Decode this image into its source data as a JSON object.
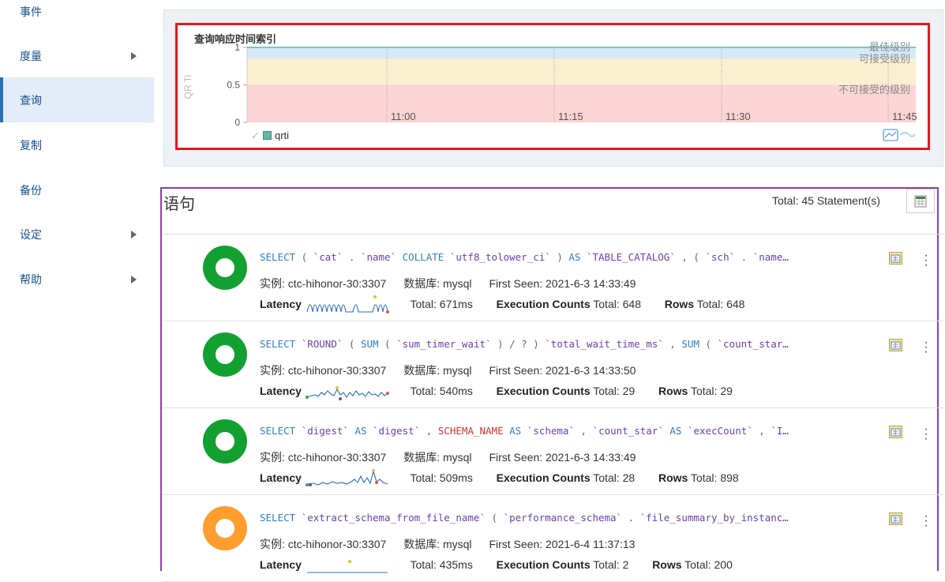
{
  "sidebar": {
    "items": [
      {
        "label": "事件",
        "has_chevron": false,
        "active": false
      },
      {
        "label": "度量",
        "has_chevron": true,
        "active": false
      },
      {
        "label": "查询",
        "has_chevron": false,
        "active": true
      },
      {
        "label": "复制",
        "has_chevron": false,
        "active": false
      },
      {
        "label": "备份",
        "has_chevron": false,
        "active": false
      },
      {
        "label": "设定",
        "has_chevron": true,
        "active": false
      },
      {
        "label": "帮助",
        "has_chevron": true,
        "active": false
      }
    ]
  },
  "chart": {
    "title": "查询响应时间索引",
    "legend_label": "qrti",
    "legend_check": "✓",
    "colors": {
      "good": "#d6e9f6",
      "acceptable": "#fbefd2",
      "unacceptable": "#fbd4d4",
      "series": "#5fb6a6",
      "frame": "#e0191f"
    }
  },
  "chart_data": {
    "type": "line",
    "title": "查询响应时间索引",
    "ylabel": "QR Ti",
    "ylim": [
      0,
      1
    ],
    "y_ticks": [
      "1",
      "0.5",
      "0"
    ],
    "x_ticks": [
      "11:00",
      "11:15",
      "11:30",
      "11:45"
    ],
    "bands": [
      {
        "label": "最佳级别",
        "from": 0.85,
        "to": 1.0
      },
      {
        "label": "可接受级别",
        "from": 0.5,
        "to": 0.85
      },
      {
        "label": "不可接受的级别",
        "from": 0,
        "to": 0.5
      }
    ],
    "series": [
      {
        "name": "qrti",
        "values": [
          1,
          1,
          1,
          1
        ]
      }
    ]
  },
  "statements": {
    "title": "语句",
    "total_text": "Total: 45 Statement(s)",
    "rows": [
      {
        "status_color": "green",
        "sql_tokens": [
          [
            "kw",
            "SELECT"
          ],
          [
            "p",
            " ( "
          ],
          [
            "p",
            "`cat`"
          ],
          [
            "p",
            " . "
          ],
          [
            "p",
            "`name`"
          ],
          [
            "p",
            " "
          ],
          [
            "kw",
            "COLLATE"
          ],
          [
            "p",
            " "
          ],
          [
            "p",
            "`utf8_tolower_ci`"
          ],
          [
            "p",
            " ) "
          ],
          [
            "kw",
            "AS"
          ],
          [
            "p",
            " "
          ],
          [
            "p",
            "`TABLE_CATALOG`"
          ],
          [
            "p",
            " , ( "
          ],
          [
            "p",
            "`sch`"
          ],
          [
            "p",
            " . "
          ],
          [
            "p",
            "`name…"
          ]
        ],
        "instance": "实例: ctc-hihonor-30:3307",
        "database": "数据库: mysql",
        "first_seen": "First Seen: 2021-6-3 14:33:49",
        "latency_label": "Latency",
        "latency_total": "Total: 671ms",
        "exec_label": "Execution Counts",
        "exec_total": "Total: 648",
        "rows_label": "Rows",
        "rows_total": "Total: 648"
      },
      {
        "status_color": "green",
        "sql_tokens": [
          [
            "kw",
            "SELECT"
          ],
          [
            "p",
            " "
          ],
          [
            "p",
            "`ROUND`"
          ],
          [
            "p",
            " ( "
          ],
          [
            "kw",
            "SUM"
          ],
          [
            "p",
            " ( "
          ],
          [
            "p",
            "`sum_timer_wait`"
          ],
          [
            "p",
            " ) / ? ) "
          ],
          [
            "p",
            "`total_wait_time_ms`"
          ],
          [
            "p",
            " , "
          ],
          [
            "kw",
            "SUM"
          ],
          [
            "p",
            " ( "
          ],
          [
            "p",
            "`count_star…"
          ]
        ],
        "instance": "实例: ctc-hihonor-30:3307",
        "database": "数据库: mysql",
        "first_seen": "First Seen: 2021-6-3 14:33:50",
        "latency_label": "Latency",
        "latency_total": "Total: 540ms",
        "exec_label": "Execution Counts",
        "exec_total": "Total: 29",
        "rows_label": "Rows",
        "rows_total": "Total: 29"
      },
      {
        "status_color": "green",
        "sql_tokens": [
          [
            "kw",
            "SELECT"
          ],
          [
            "p",
            " "
          ],
          [
            "p",
            "`digest`"
          ],
          [
            "p",
            " "
          ],
          [
            "kw",
            "AS"
          ],
          [
            "p",
            " "
          ],
          [
            "p",
            "`digest`"
          ],
          [
            "p",
            " , "
          ],
          [
            "fn",
            "SCHEMA_NAME"
          ],
          [
            "p",
            " "
          ],
          [
            "kw",
            "AS"
          ],
          [
            "p",
            " "
          ],
          [
            "p",
            "`schema`"
          ],
          [
            "p",
            " , "
          ],
          [
            "p",
            "`count_star`"
          ],
          [
            "p",
            " "
          ],
          [
            "kw",
            "AS"
          ],
          [
            "p",
            " "
          ],
          [
            "p",
            "`execCount`"
          ],
          [
            "p",
            " , "
          ],
          [
            "p",
            "`I…"
          ]
        ],
        "instance": "实例: ctc-hihonor-30:3307",
        "database": "数据库: mysql",
        "first_seen": "First Seen: 2021-6-3 14:33:49",
        "latency_label": "Latency",
        "latency_total": "Total: 509ms",
        "exec_label": "Execution Counts",
        "exec_total": "Total: 28",
        "rows_label": "Rows",
        "rows_total": "Total: 898"
      },
      {
        "status_color": "orange",
        "sql_tokens": [
          [
            "kw",
            "SELECT"
          ],
          [
            "p",
            " "
          ],
          [
            "p",
            "`extract_schema_from_file_name`"
          ],
          [
            "p",
            " ( "
          ],
          [
            "p",
            "`performance_schema`"
          ],
          [
            "p",
            " . "
          ],
          [
            "p",
            "`file_summary_by_instanc…"
          ]
        ],
        "instance": "实例: ctc-hihonor-30:3307",
        "database": "数据库: mysql",
        "first_seen": "First Seen: 2021-6-4 11:37:13",
        "latency_label": "Latency",
        "latency_total": "Total: 435ms",
        "exec_label": "Execution Counts",
        "exec_total": "Total: 2",
        "rows_label": "Rows",
        "rows_total": "Total: 200"
      }
    ]
  }
}
